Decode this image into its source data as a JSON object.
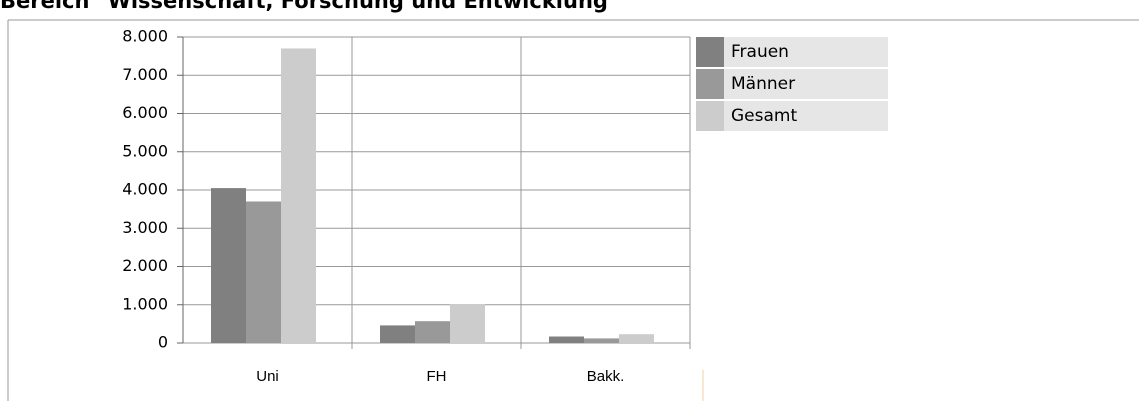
{
  "chart_data": {
    "type": "bar",
    "title": "Bereich \"Wissenschaft, Forschung und Entwicklung\"",
    "categories": [
      "Uni",
      "FH",
      "Bakk."
    ],
    "series": [
      {
        "name": "Frauen",
        "color": "#808080",
        "values": [
          4050,
          460,
          170
        ]
      },
      {
        "name": "Männer",
        "color": "#999999",
        "values": [
          3700,
          570,
          120
        ]
      },
      {
        "name": "Gesamt",
        "color": "#cccccc",
        "values": [
          7700,
          1010,
          230
        ]
      }
    ],
    "ylim": [
      0,
      8000
    ],
    "yticks": [
      0,
      {
        "value": 1000,
        "label": "1.000"
      },
      {
        "value": 2000,
        "label": "2.000"
      },
      {
        "value": 3000,
        "label": "3.000"
      },
      {
        "value": 4000,
        "label": "4.000"
      },
      {
        "value": 5000,
        "label": "5.000"
      },
      {
        "value": 6000,
        "label": "6.000"
      },
      {
        "value": 7000,
        "label": "7.000"
      },
      {
        "value": 8000,
        "label": "8.000"
      }
    ],
    "grid": true,
    "legend": "right"
  }
}
